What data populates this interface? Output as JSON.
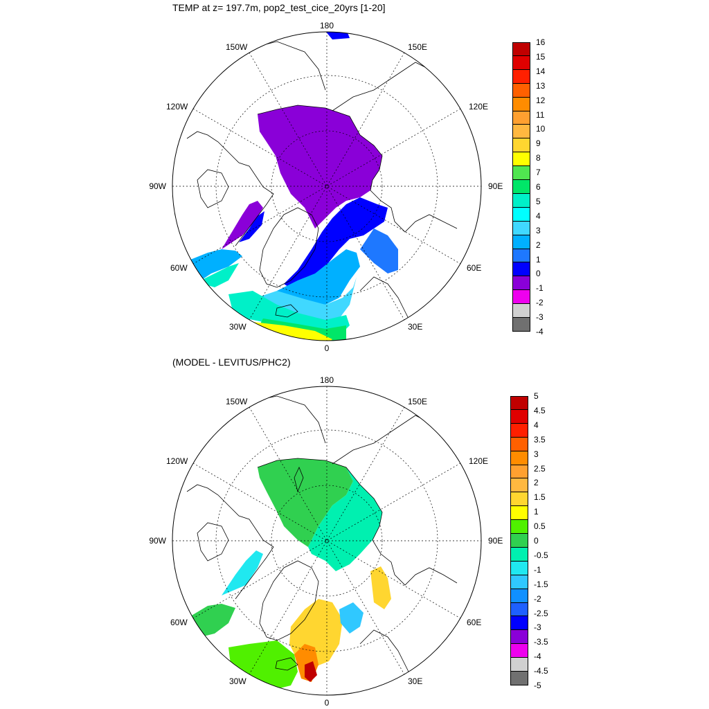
{
  "maps": [
    {
      "title": "TEMP at z= 197.7m, pop2_test_cice_20yrs [1-20]",
      "lon_labels": {
        "top": "180",
        "bottom": "0",
        "left": "90W",
        "right": "90E",
        "w150": "150W",
        "w120": "120W",
        "w60": "60W",
        "w30": "30W",
        "e150": "150E",
        "e120": "120E",
        "e60": "60E",
        "e30": "30E"
      },
      "colorbar": {
        "ticks": [
          "16",
          "15",
          "14",
          "13",
          "12",
          "11",
          "10",
          "9",
          "8",
          "7",
          "6",
          "5",
          "4",
          "3",
          "2",
          "1",
          "0",
          "-1",
          "-2",
          "-3",
          "-4"
        ],
        "colors": [
          "#c00000",
          "#e00000",
          "#ff2000",
          "#ff6000",
          "#ff8c00",
          "#ffa030",
          "#ffb840",
          "#ffd630",
          "#ffff00",
          "#50e650",
          "#00e668",
          "#00f0c8",
          "#00ffff",
          "#40d8ff",
          "#00b0ff",
          "#1e78ff",
          "#0000ff",
          "#8a00d8",
          "#ee00ee",
          "#d0d0d0",
          "#707070"
        ]
      }
    },
    {
      "title": "(MODEL - LEVITUS/PHC2)",
      "lon_labels": {
        "top": "180",
        "bottom": "0",
        "left": "90W",
        "right": "90E",
        "w150": "150W",
        "w120": "120W",
        "w60": "60W",
        "w30": "30W",
        "e150": "150E",
        "e120": "120E",
        "e60": "60E",
        "e30": "30E"
      },
      "colorbar": {
        "ticks": [
          "5",
          "4.5",
          "4",
          "3.5",
          "3",
          "2.5",
          "2",
          "1.5",
          "1",
          "0.5",
          "0",
          "-0.5",
          "-1",
          "-1.5",
          "-2",
          "-2.5",
          "-3",
          "-3.5",
          "-4",
          "-4.5",
          "-5"
        ],
        "colors": [
          "#c00000",
          "#e00000",
          "#ff2000",
          "#ff6000",
          "#ff8c00",
          "#ffa030",
          "#ffb840",
          "#ffd630",
          "#ffff00",
          "#50f000",
          "#30d050",
          "#00f0b0",
          "#20e8f0",
          "#30c8ff",
          "#1090ff",
          "#1e60ff",
          "#0000ff",
          "#8a00d8",
          "#ee00ee",
          "#d0d0d0",
          "#707070"
        ]
      }
    }
  ]
}
